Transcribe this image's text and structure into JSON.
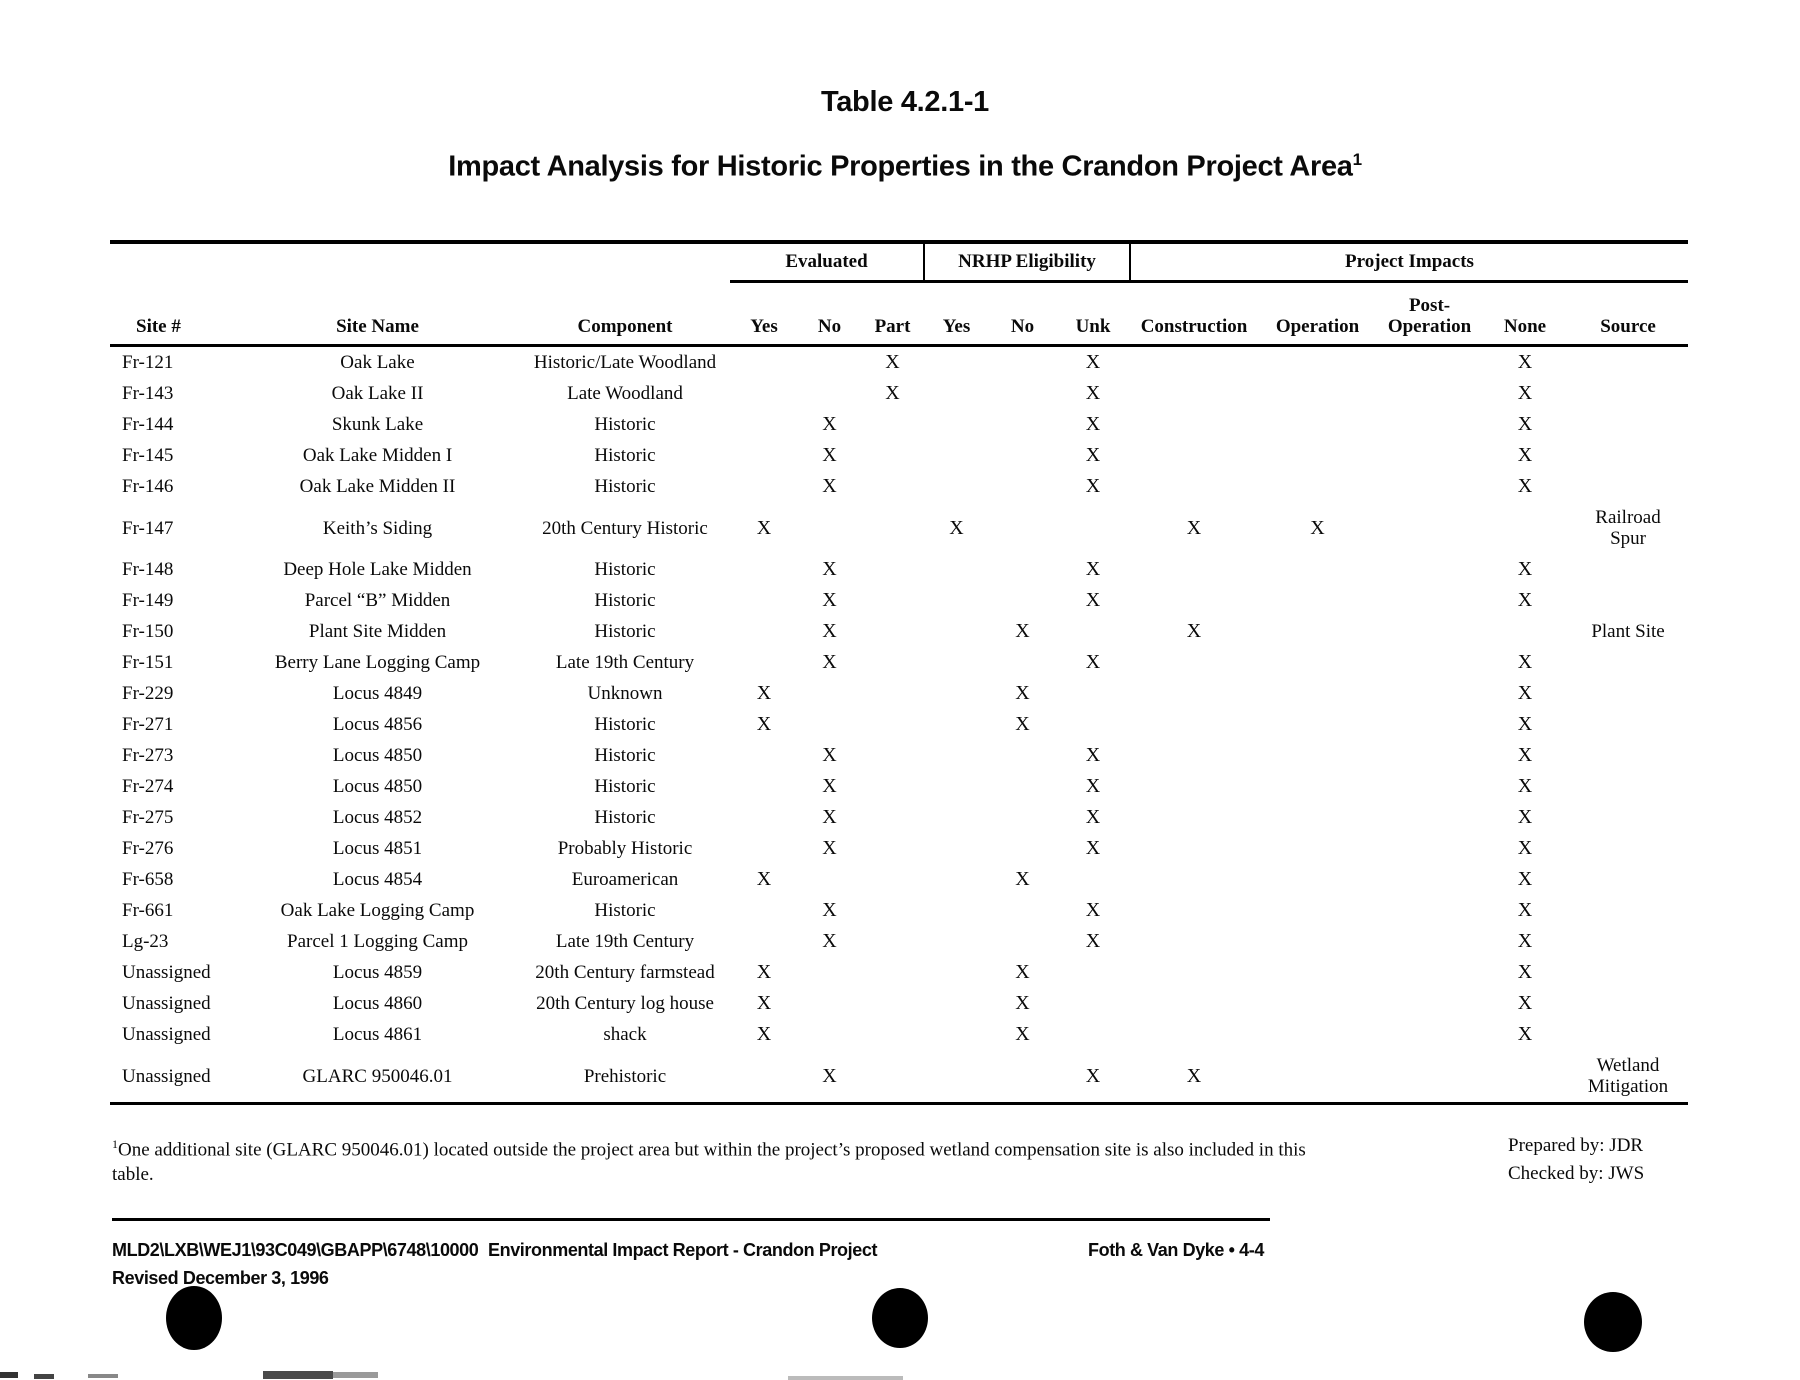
{
  "header": {
    "table_number": "Table 4.2.1-1",
    "title": "Impact Analysis for Historic Properties in the Crandon Project Area",
    "title_footnote_marker": "1"
  },
  "table": {
    "groups": {
      "evaluated": "Evaluated",
      "nrhp": "NRHP Eligibility",
      "impacts": "Project Impacts"
    },
    "columns": [
      "Site #",
      "Site Name",
      "Component",
      "Yes",
      "No",
      "Part",
      "Yes",
      "No",
      "Unk",
      "Construction",
      "Operation",
      "Post-Operation",
      "None",
      "Source"
    ],
    "rows": [
      [
        "Fr-121",
        "Oak Lake",
        "Historic/Late Woodland",
        "",
        "",
        "X",
        "",
        "",
        "X",
        "",
        "",
        "",
        "X",
        ""
      ],
      [
        "Fr-143",
        "Oak Lake II",
        "Late Woodland",
        "",
        "",
        "X",
        "",
        "",
        "X",
        "",
        "",
        "",
        "X",
        ""
      ],
      [
        "Fr-144",
        "Skunk Lake",
        "Historic",
        "",
        "X",
        "",
        "",
        "",
        "X",
        "",
        "",
        "",
        "X",
        ""
      ],
      [
        "Fr-145",
        "Oak Lake Midden I",
        "Historic",
        "",
        "X",
        "",
        "",
        "",
        "X",
        "",
        "",
        "",
        "X",
        ""
      ],
      [
        "Fr-146",
        "Oak Lake Midden II",
        "Historic",
        "",
        "X",
        "",
        "",
        "",
        "X",
        "",
        "",
        "",
        "X",
        ""
      ],
      [
        "Fr-147",
        "Keith’s Siding",
        "20th Century Historic",
        "X",
        "",
        "",
        "X",
        "",
        "",
        "X",
        "X",
        "",
        "",
        "Railroad\nSpur"
      ],
      [
        "Fr-148",
        "Deep Hole Lake Midden",
        "Historic",
        "",
        "X",
        "",
        "",
        "",
        "X",
        "",
        "",
        "",
        "X",
        ""
      ],
      [
        "Fr-149",
        "Parcel “B” Midden",
        "Historic",
        "",
        "X",
        "",
        "",
        "",
        "X",
        "",
        "",
        "",
        "X",
        ""
      ],
      [
        "Fr-150",
        "Plant Site Midden",
        "Historic",
        "",
        "X",
        "",
        "",
        "X",
        "",
        "X",
        "",
        "",
        "",
        "Plant Site"
      ],
      [
        "Fr-151",
        "Berry Lane Logging Camp",
        "Late 19th Century",
        "",
        "X",
        "",
        "",
        "",
        "X",
        "",
        "",
        "",
        "X",
        ""
      ],
      [
        "Fr-229",
        "Locus 4849",
        "Unknown",
        "X",
        "",
        "",
        "",
        "X",
        "",
        "",
        "",
        "",
        "X",
        ""
      ],
      [
        "Fr-271",
        "Locus 4856",
        "Historic",
        "X",
        "",
        "",
        "",
        "X",
        "",
        "",
        "",
        "",
        "X",
        ""
      ],
      [
        "Fr-273",
        "Locus 4850",
        "Historic",
        "",
        "X",
        "",
        "",
        "",
        "X",
        "",
        "",
        "",
        "X",
        ""
      ],
      [
        "Fr-274",
        "Locus 4850",
        "Historic",
        "",
        "X",
        "",
        "",
        "",
        "X",
        "",
        "",
        "",
        "X",
        ""
      ],
      [
        "Fr-275",
        "Locus 4852",
        "Historic",
        "",
        "X",
        "",
        "",
        "",
        "X",
        "",
        "",
        "",
        "X",
        ""
      ],
      [
        "Fr-276",
        "Locus 4851",
        "Probably Historic",
        "",
        "X",
        "",
        "",
        "",
        "X",
        "",
        "",
        "",
        "X",
        ""
      ],
      [
        "Fr-658",
        "Locus 4854",
        "Euroamerican",
        "X",
        "",
        "",
        "",
        "X",
        "",
        "",
        "",
        "",
        "X",
        ""
      ],
      [
        "Fr-661",
        "Oak Lake Logging Camp",
        "Historic",
        "",
        "X",
        "",
        "",
        "",
        "X",
        "",
        "",
        "",
        "X",
        ""
      ],
      [
        "Lg-23",
        "Parcel 1 Logging Camp",
        "Late 19th Century",
        "",
        "X",
        "",
        "",
        "",
        "X",
        "",
        "",
        "",
        "X",
        ""
      ],
      [
        "Unassigned",
        "Locus 4859",
        "20th Century farmstead",
        "X",
        "",
        "",
        "",
        "X",
        "",
        "",
        "",
        "",
        "X",
        ""
      ],
      [
        "Unassigned",
        "Locus 4860",
        "20th Century log house",
        "X",
        "",
        "",
        "",
        "X",
        "",
        "",
        "",
        "",
        "X",
        ""
      ],
      [
        "Unassigned",
        "Locus 4861",
        "shack",
        "X",
        "",
        "",
        "",
        "X",
        "",
        "",
        "",
        "",
        "X",
        ""
      ],
      [
        "Unassigned",
        "GLARC 950046.01",
        "Prehistoric",
        "",
        "X",
        "",
        "",
        "",
        "X",
        "X",
        "",
        "",
        "",
        "Wetland\nMitigation"
      ]
    ]
  },
  "footnote": {
    "marker": "1",
    "text": "One additional site (GLARC 950046.01) located outside the project area but within the project’s proposed wetland compensation site is also included in this table."
  },
  "signoff": {
    "prepared": "Prepared by: JDR",
    "checked": "Checked by: JWS"
  },
  "footer": {
    "path": "MLD2\\LXB\\WEJ1\\93C049\\GBAPP\\6748\\10000",
    "report": "Environmental Impact Report - Crandon Project",
    "firm_page": "Foth & Van Dyke • 4-4",
    "revised": "Revised December 3, 1996"
  }
}
